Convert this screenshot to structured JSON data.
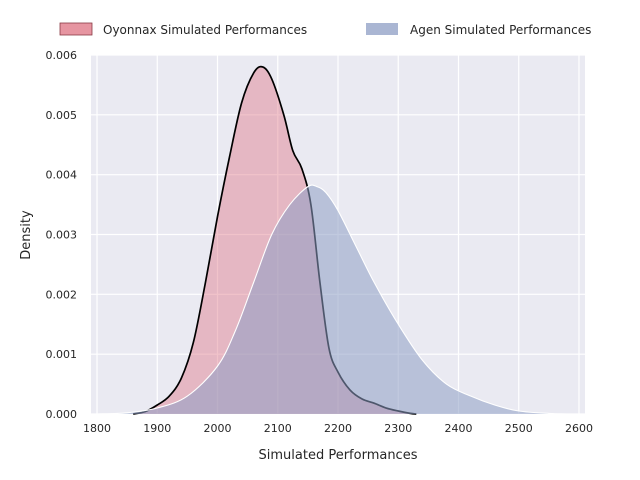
{
  "chart_data": {
    "type": "area",
    "xlabel": "Simulated Performances",
    "ylabel": "Density",
    "xlim": [
      1790,
      2610
    ],
    "ylim": [
      0,
      0.006
    ],
    "x_ticks": [
      1800,
      1900,
      2000,
      2100,
      2200,
      2300,
      2400,
      2500,
      2600
    ],
    "y_ticks": [
      0.0,
      0.001,
      0.002,
      0.003,
      0.004,
      0.005,
      0.006
    ],
    "x_tick_labels": [
      "1800",
      "1900",
      "2000",
      "2100",
      "2200",
      "2300",
      "2400",
      "2500",
      "2600"
    ],
    "y_tick_labels": [
      "0.000",
      "0.001",
      "0.002",
      "0.003",
      "0.004",
      "0.005",
      "0.006"
    ],
    "grid": true,
    "legend_position": "top",
    "series": [
      {
        "name": "Oyonnax Simulated Performances",
        "fill": "#e07a8a",
        "fill_opacity": 0.45,
        "stroke": "#000000",
        "points": [
          [
            1860,
            0.0
          ],
          [
            1880,
            4e-05
          ],
          [
            1900,
            0.00015
          ],
          [
            1920,
            0.0003
          ],
          [
            1940,
            0.0006
          ],
          [
            1960,
            0.0012
          ],
          [
            1980,
            0.0022
          ],
          [
            2000,
            0.0033
          ],
          [
            2020,
            0.0043
          ],
          [
            2040,
            0.0052
          ],
          [
            2060,
            0.0057
          ],
          [
            2075,
            0.0058
          ],
          [
            2090,
            0.0056
          ],
          [
            2110,
            0.005
          ],
          [
            2125,
            0.0044
          ],
          [
            2140,
            0.0041
          ],
          [
            2155,
            0.0035
          ],
          [
            2170,
            0.0022
          ],
          [
            2185,
            0.0011
          ],
          [
            2200,
            0.0007
          ],
          [
            2220,
            0.0004
          ],
          [
            2240,
            0.00025
          ],
          [
            2260,
            0.00018
          ],
          [
            2280,
            0.0001
          ],
          [
            2300,
            5e-05
          ],
          [
            2320,
            1e-05
          ],
          [
            2330,
            0.0
          ]
        ]
      },
      {
        "name": "Agen Simulated Performances",
        "fill": "#8e9ec4",
        "fill_opacity": 0.55,
        "stroke": "#ffffff",
        "points": [
          [
            1800,
            0.0
          ],
          [
            1850,
            2e-05
          ],
          [
            1900,
            0.0001
          ],
          [
            1950,
            0.0003
          ],
          [
            2000,
            0.0008
          ],
          [
            2030,
            0.0014
          ],
          [
            2060,
            0.0022
          ],
          [
            2090,
            0.003
          ],
          [
            2120,
            0.0035
          ],
          [
            2150,
            0.0038
          ],
          [
            2165,
            0.0038
          ],
          [
            2180,
            0.0037
          ],
          [
            2200,
            0.0034
          ],
          [
            2230,
            0.0028
          ],
          [
            2260,
            0.0022
          ],
          [
            2300,
            0.0015
          ],
          [
            2340,
            0.0009
          ],
          [
            2380,
            0.0005
          ],
          [
            2420,
            0.0003
          ],
          [
            2460,
            0.00015
          ],
          [
            2500,
            5e-05
          ],
          [
            2550,
            1e-05
          ],
          [
            2580,
            0.0
          ]
        ]
      }
    ]
  }
}
